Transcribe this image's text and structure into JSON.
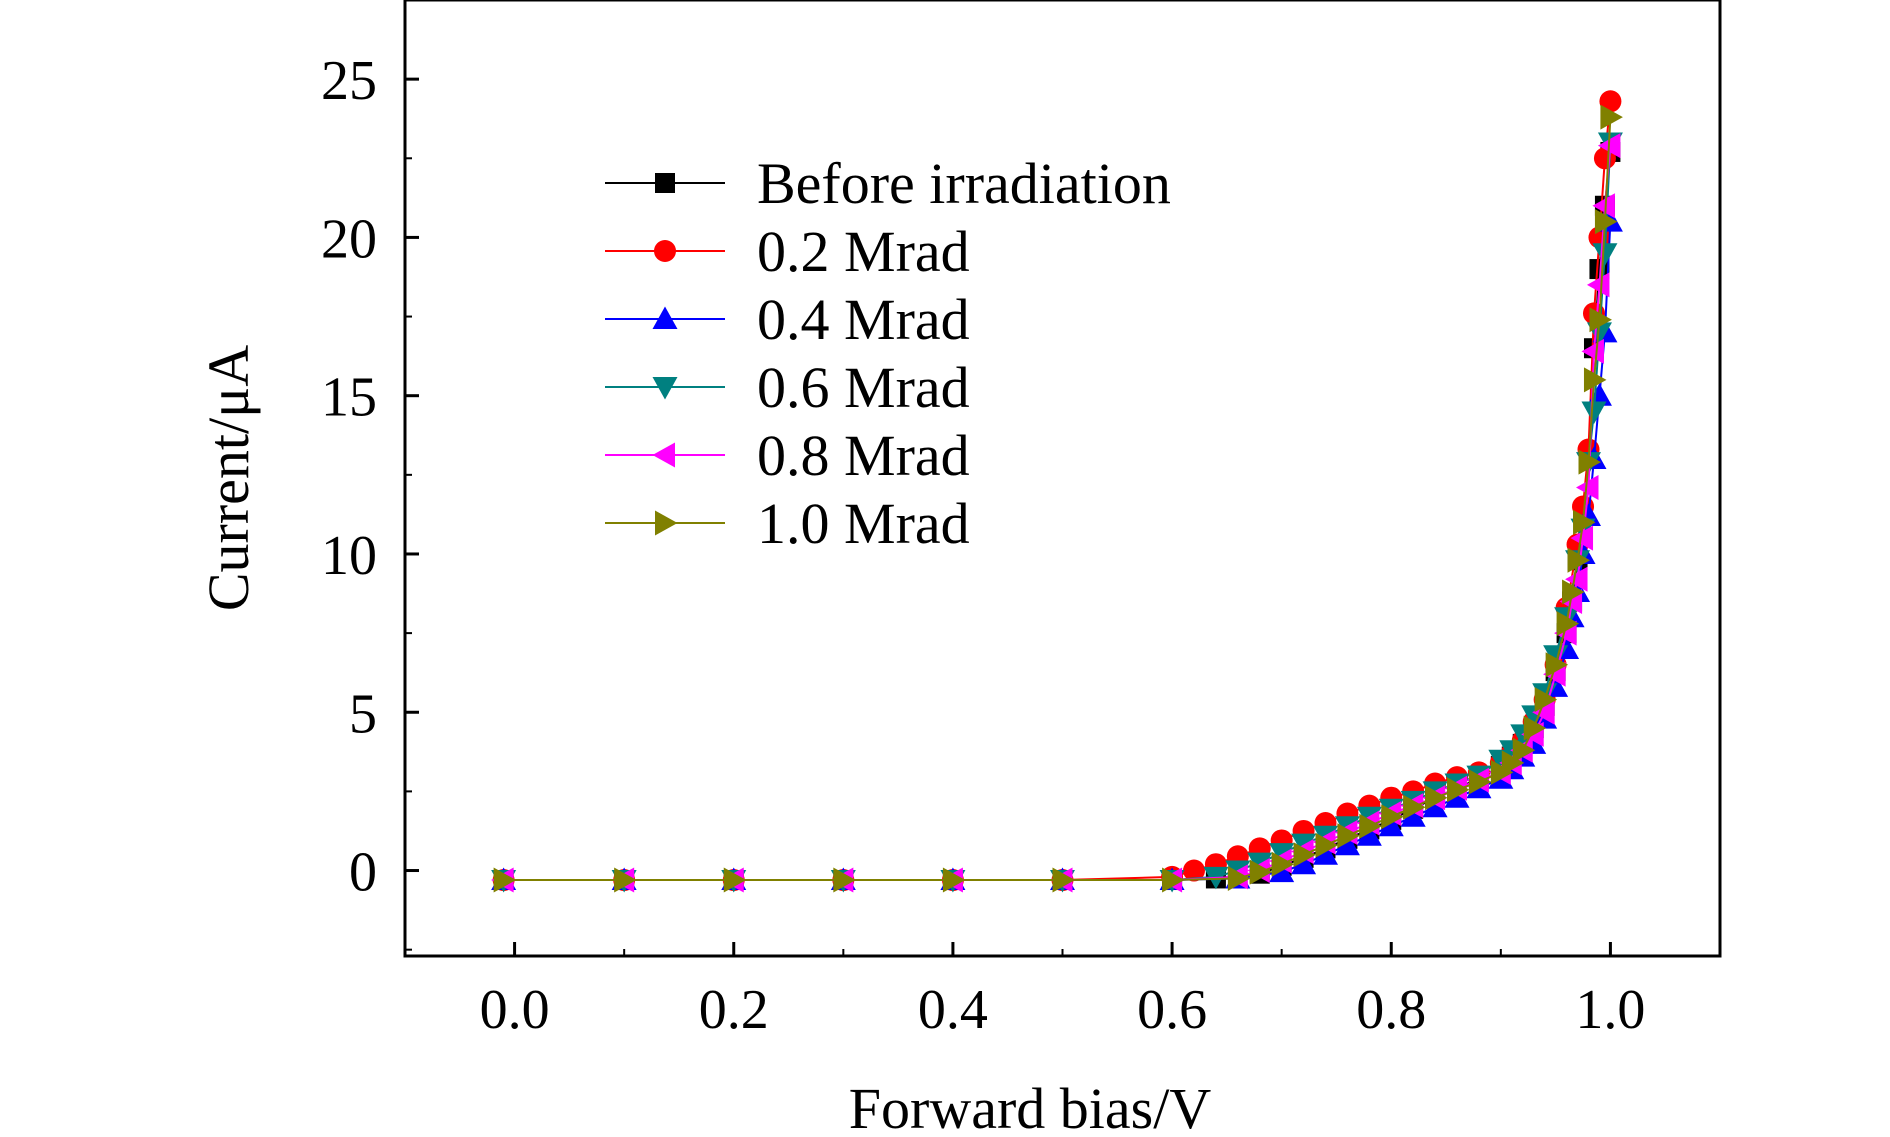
{
  "chart_data": {
    "type": "line",
    "title": "",
    "xlabel": "Forward bias/V",
    "ylabel": "Current/μA",
    "xlim": [
      -0.1,
      1.1
    ],
    "ylim": [
      -2.7,
      27.5
    ],
    "xticks": [
      0.0,
      0.2,
      0.4,
      0.6,
      0.8,
      1.0
    ],
    "xtick_labels": [
      "0.0",
      "0.2",
      "0.4",
      "0.6",
      "0.8",
      "1.0"
    ],
    "yticks": [
      0,
      5,
      10,
      15,
      20,
      25
    ],
    "ytick_labels": [
      "0",
      "5",
      "10",
      "15",
      "20",
      "25"
    ],
    "grid": false,
    "legend_position": "upper-left",
    "series": [
      {
        "name": "Before irradiation",
        "color": "#000000",
        "marker": "square",
        "x": [
          -0.01,
          0.1,
          0.2,
          0.3,
          0.4,
          0.5,
          0.6,
          0.64,
          0.68,
          0.7,
          0.72,
          0.74,
          0.76,
          0.78,
          0.8,
          0.82,
          0.84,
          0.86,
          0.88,
          0.9,
          0.91,
          0.92,
          0.93,
          0.94,
          0.95,
          0.96,
          0.965,
          0.97,
          0.975,
          0.98,
          0.985,
          0.99,
          0.995,
          1.0
        ],
        "y": [
          -0.3,
          -0.3,
          -0.3,
          -0.3,
          -0.3,
          -0.3,
          -0.3,
          -0.25,
          -0.1,
          0.15,
          0.4,
          0.7,
          1.0,
          1.3,
          1.6,
          1.95,
          2.3,
          2.6,
          2.9,
          3.3,
          3.6,
          4.0,
          4.5,
          5.2,
          6.3,
          7.5,
          8.5,
          9.8,
          11.3,
          13.0,
          16.5,
          19.0,
          21.0,
          22.7
        ]
      },
      {
        "name": "0.2 Mrad",
        "color": "#ff0000",
        "marker": "circle",
        "x": [
          -0.01,
          0.1,
          0.2,
          0.3,
          0.4,
          0.5,
          0.6,
          0.62,
          0.64,
          0.66,
          0.68,
          0.7,
          0.72,
          0.74,
          0.76,
          0.78,
          0.8,
          0.82,
          0.84,
          0.86,
          0.88,
          0.9,
          0.91,
          0.92,
          0.93,
          0.94,
          0.95,
          0.96,
          0.97,
          0.975,
          0.98,
          0.985,
          0.99,
          0.995,
          1.0
        ],
        "y": [
          -0.3,
          -0.3,
          -0.3,
          -0.3,
          -0.3,
          -0.3,
          -0.2,
          0.0,
          0.2,
          0.45,
          0.7,
          0.95,
          1.25,
          1.5,
          1.8,
          2.05,
          2.3,
          2.5,
          2.75,
          2.95,
          3.1,
          3.4,
          3.7,
          4.1,
          4.7,
          5.4,
          6.5,
          8.3,
          10.3,
          11.5,
          13.3,
          17.6,
          20.0,
          22.5,
          24.3
        ]
      },
      {
        "name": "0.4 Mrad",
        "color": "#0000ff",
        "marker": "triangle-up",
        "x": [
          -0.01,
          0.1,
          0.2,
          0.3,
          0.4,
          0.5,
          0.6,
          0.66,
          0.7,
          0.72,
          0.74,
          0.76,
          0.78,
          0.8,
          0.82,
          0.84,
          0.86,
          0.88,
          0.9,
          0.91,
          0.92,
          0.93,
          0.94,
          0.95,
          0.96,
          0.965,
          0.97,
          0.975,
          0.98,
          0.985,
          0.99,
          0.995,
          1.0
        ],
        "y": [
          -0.3,
          -0.3,
          -0.3,
          -0.3,
          -0.3,
          -0.3,
          -0.3,
          -0.25,
          -0.05,
          0.2,
          0.5,
          0.8,
          1.1,
          1.4,
          1.7,
          2.0,
          2.3,
          2.6,
          2.9,
          3.2,
          3.6,
          4.0,
          4.8,
          5.8,
          7.0,
          8.0,
          8.8,
          10.0,
          11.2,
          13.0,
          15.0,
          17.0,
          20.5
        ]
      },
      {
        "name": "0.6 Mrad",
        "color": "#008080",
        "marker": "triangle-down",
        "x": [
          -0.01,
          0.1,
          0.2,
          0.3,
          0.4,
          0.5,
          0.6,
          0.64,
          0.66,
          0.68,
          0.7,
          0.72,
          0.74,
          0.76,
          0.78,
          0.8,
          0.82,
          0.84,
          0.86,
          0.88,
          0.9,
          0.91,
          0.92,
          0.93,
          0.94,
          0.95,
          0.96,
          0.97,
          0.975,
          0.98,
          0.985,
          0.99,
          0.995,
          1.0
        ],
        "y": [
          -0.3,
          -0.3,
          -0.3,
          -0.3,
          -0.3,
          -0.3,
          -0.3,
          -0.2,
          0.0,
          0.25,
          0.55,
          0.85,
          1.1,
          1.4,
          1.7,
          1.95,
          2.2,
          2.5,
          2.75,
          3.0,
          3.5,
          3.8,
          4.3,
          4.9,
          5.6,
          6.8,
          8.0,
          9.8,
          10.8,
          12.9,
          14.5,
          17.0,
          19.5,
          23.0
        ]
      },
      {
        "name": "0.8 Mrad",
        "color": "#ff00ff",
        "marker": "triangle-left",
        "x": [
          -0.01,
          0.1,
          0.2,
          0.3,
          0.4,
          0.5,
          0.6,
          0.66,
          0.68,
          0.7,
          0.72,
          0.74,
          0.76,
          0.78,
          0.8,
          0.82,
          0.84,
          0.86,
          0.88,
          0.9,
          0.91,
          0.92,
          0.93,
          0.94,
          0.95,
          0.96,
          0.965,
          0.97,
          0.975,
          0.98,
          0.985,
          0.99,
          0.995,
          1.0
        ],
        "y": [
          -0.3,
          -0.3,
          -0.3,
          -0.3,
          -0.3,
          -0.3,
          -0.3,
          -0.2,
          0.0,
          0.3,
          0.6,
          0.9,
          1.2,
          1.5,
          1.8,
          2.05,
          2.3,
          2.6,
          2.85,
          3.1,
          3.4,
          3.8,
          4.3,
          5.0,
          6.2,
          7.5,
          8.5,
          9.2,
          10.5,
          12.1,
          16.4,
          18.5,
          21.0,
          22.9
        ]
      },
      {
        "name": "1.0 Mrad",
        "color": "#808000",
        "marker": "triangle-right",
        "x": [
          -0.01,
          0.1,
          0.2,
          0.3,
          0.4,
          0.5,
          0.6,
          0.66,
          0.68,
          0.7,
          0.72,
          0.74,
          0.76,
          0.78,
          0.8,
          0.82,
          0.84,
          0.86,
          0.88,
          0.9,
          0.91,
          0.92,
          0.93,
          0.94,
          0.95,
          0.96,
          0.965,
          0.97,
          0.975,
          0.98,
          0.985,
          0.99,
          0.995,
          1.0
        ],
        "y": [
          -0.3,
          -0.3,
          -0.3,
          -0.3,
          -0.3,
          -0.3,
          -0.3,
          -0.25,
          -0.05,
          0.2,
          0.5,
          0.8,
          1.1,
          1.4,
          1.7,
          2.0,
          2.3,
          2.55,
          2.8,
          3.1,
          3.4,
          3.8,
          4.5,
          5.4,
          6.5,
          7.8,
          8.8,
          9.8,
          11.0,
          12.9,
          15.5,
          17.4,
          20.5,
          23.8
        ]
      }
    ]
  }
}
